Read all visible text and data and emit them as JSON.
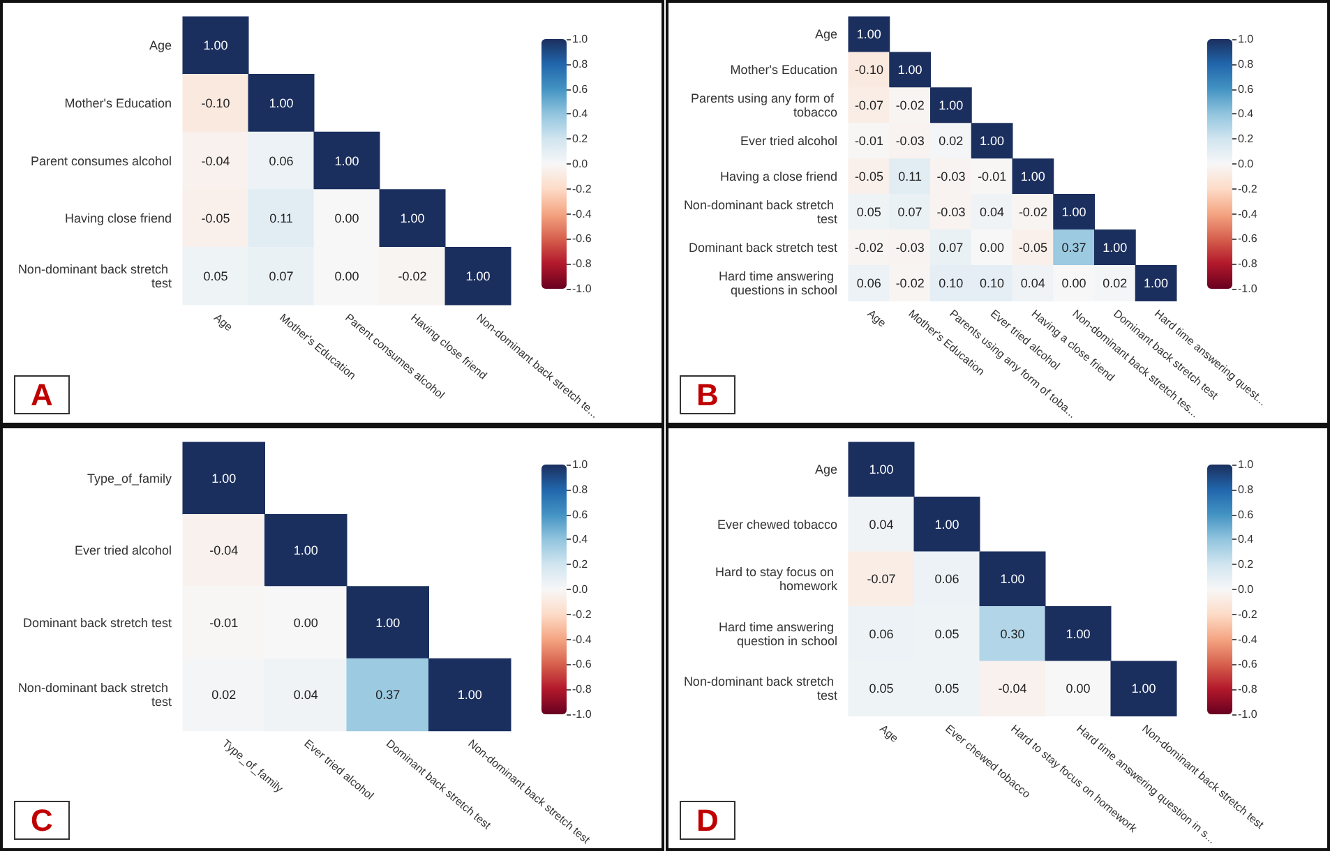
{
  "chart_data": [
    {
      "type": "heatmap",
      "title": "A",
      "categories": [
        "Age",
        "Mother's Education",
        "Parent consumes alcohol",
        "Having close friend",
        "Non-dominant back stretch te..."
      ],
      "y_categories": [
        "Age",
        "Mother's Education",
        "Parent consumes alcohol",
        "Having close friend",
        "Non-dominant back stretch test"
      ],
      "cells": [
        [
          1.0,
          null,
          null,
          null,
          null
        ],
        [
          -0.1,
          1.0,
          null,
          null,
          null
        ],
        [
          -0.04,
          0.06,
          1.0,
          null,
          null
        ],
        [
          -0.05,
          0.11,
          0.0,
          1.0,
          null
        ],
        [
          0.05,
          0.07,
          0.0,
          -0.02,
          1.0
        ]
      ],
      "cell_labels": [
        [
          "1.00",
          null,
          null,
          null,
          null
        ],
        [
          "-0.10",
          "1.00",
          null,
          null,
          null
        ],
        [
          "-0.04",
          "0.06",
          "1.00",
          null,
          null
        ],
        [
          "-0.05",
          "0.11",
          "0.00",
          "1.00",
          null
        ],
        [
          "0.05",
          "0.07",
          "0.00",
          "-0.02",
          "1.00"
        ]
      ],
      "clim": [
        -1,
        1
      ],
      "cticks": [
        {
          "value": -1,
          "label": "-1.0"
        },
        {
          "value": -0.8,
          "label": "-0.8"
        },
        {
          "value": -0.6,
          "label": "-0.6"
        },
        {
          "value": -0.4,
          "label": "-0.4"
        },
        {
          "value": -0.2,
          "label": "-0.2"
        },
        {
          "value": 0,
          "label": "0.0"
        },
        {
          "value": 0.2,
          "label": "0.2"
        },
        {
          "value": 0.4,
          "label": "0.4"
        },
        {
          "value": 0.6,
          "label": "0.6"
        },
        {
          "value": 0.8,
          "label": "0.8"
        },
        {
          "value": 1,
          "label": "1.0"
        }
      ],
      "data_labels": true
    },
    {
      "type": "heatmap",
      "title": "B",
      "categories": [
        "Age",
        "Mother's Education",
        "Parents using any form of toba...",
        "Ever tried alcohol",
        "Having a close friend",
        "Non-dominant back stretch tes...",
        "Dominant back stretch test",
        "Hard time answering quest..."
      ],
      "y_categories": [
        "Age",
        "Mother's Education",
        "Parents using any form of tobacco",
        "Ever tried alcohol",
        "Having a close friend",
        "Non-dominant back stretch test",
        "Dominant back stretch test",
        "Hard time answering questions in school"
      ],
      "cells": [
        [
          1.0,
          null,
          null,
          null,
          null,
          null,
          null,
          null
        ],
        [
          -0.1,
          1.0,
          null,
          null,
          null,
          null,
          null,
          null
        ],
        [
          -0.07,
          -0.02,
          1.0,
          null,
          null,
          null,
          null,
          null
        ],
        [
          -0.01,
          -0.03,
          0.02,
          1.0,
          null,
          null,
          null,
          null
        ],
        [
          -0.05,
          0.11,
          -0.03,
          -0.01,
          1.0,
          null,
          null,
          null
        ],
        [
          0.05,
          0.07,
          -0.03,
          0.04,
          -0.02,
          1.0,
          null,
          null
        ],
        [
          -0.02,
          -0.03,
          0.07,
          0.0,
          -0.05,
          0.37,
          1.0,
          null
        ],
        [
          0.06,
          -0.02,
          0.1,
          0.1,
          0.04,
          0.0,
          0.02,
          1.0
        ]
      ],
      "cell_labels": [
        [
          "1.00",
          null,
          null,
          null,
          null,
          null,
          null,
          null
        ],
        [
          "-0.10",
          "1.00",
          null,
          null,
          null,
          null,
          null,
          null
        ],
        [
          "-0.07",
          "-0.02",
          "1.00",
          null,
          null,
          null,
          null,
          null
        ],
        [
          "-0.01",
          "-0.03",
          "0.02",
          "1.00",
          null,
          null,
          null,
          null
        ],
        [
          "-0.05",
          "0.11",
          "-0.03",
          "-0.01",
          "1.00",
          null,
          null,
          null
        ],
        [
          "0.05",
          "0.07",
          "-0.03",
          "0.04",
          "-0.02",
          "1.00",
          null,
          null
        ],
        [
          "-0.02",
          "-0.03",
          "0.07",
          "0.00",
          "-0.05",
          "0.37",
          "1.00",
          null
        ],
        [
          "0.06",
          "-0.02",
          "0.10",
          "0.10",
          "0.04",
          "0.00",
          "0.02",
          "1.00"
        ]
      ],
      "clim": [
        -1,
        1
      ],
      "cticks": [
        {
          "value": -1,
          "label": "-1.0"
        },
        {
          "value": -0.8,
          "label": "-0.8"
        },
        {
          "value": -0.6,
          "label": "-0.6"
        },
        {
          "value": -0.4,
          "label": "-0.4"
        },
        {
          "value": -0.2,
          "label": "-0.2"
        },
        {
          "value": 0,
          "label": "0.0"
        },
        {
          "value": 0.2,
          "label": "0.2"
        },
        {
          "value": 0.4,
          "label": "0.4"
        },
        {
          "value": 0.6,
          "label": "0.6"
        },
        {
          "value": 0.8,
          "label": "0.8"
        },
        {
          "value": 1,
          "label": "1.0"
        }
      ],
      "data_labels": true
    },
    {
      "type": "heatmap",
      "title": "C",
      "categories": [
        "Type_of_family",
        "Ever tried alcohol",
        "Dominant back stretch test",
        "Non-dominant back stretch test"
      ],
      "y_categories": [
        "Type_of_family",
        "Ever tried alcohol",
        "Dominant back stretch test",
        "Non-dominant back stretch test"
      ],
      "cells": [
        [
          1.0,
          null,
          null,
          null
        ],
        [
          -0.04,
          1.0,
          null,
          null
        ],
        [
          -0.01,
          0.0,
          1.0,
          null
        ],
        [
          0.02,
          0.04,
          0.37,
          1.0
        ]
      ],
      "cell_labels": [
        [
          "1.00",
          null,
          null,
          null
        ],
        [
          "-0.04",
          "1.00",
          null,
          null
        ],
        [
          "-0.01",
          "0.00",
          "1.00",
          null
        ],
        [
          "0.02",
          "0.04",
          "0.37",
          "1.00"
        ]
      ],
      "clim": [
        -1,
        1
      ],
      "cticks": [
        {
          "value": -1,
          "label": "-1.0"
        },
        {
          "value": -0.8,
          "label": "-0.8"
        },
        {
          "value": -0.6,
          "label": "-0.6"
        },
        {
          "value": -0.4,
          "label": "-0.4"
        },
        {
          "value": -0.2,
          "label": "-0.2"
        },
        {
          "value": 0,
          "label": "0.0"
        },
        {
          "value": 0.2,
          "label": "0.2"
        },
        {
          "value": 0.4,
          "label": "0.4"
        },
        {
          "value": 0.6,
          "label": "0.6"
        },
        {
          "value": 0.8,
          "label": "0.8"
        },
        {
          "value": 1,
          "label": "1.0"
        }
      ],
      "data_labels": true
    },
    {
      "type": "heatmap",
      "title": "D",
      "categories": [
        "Age",
        "Ever chewed tobacco",
        "Hard to stay focus on homework",
        "Hard time answering question in s...",
        "Non-dominant back stretch test"
      ],
      "y_categories": [
        "Age",
        "Ever chewed tobacco",
        "Hard to stay focus on homework",
        "Hard time answering question in school",
        "Non-dominant back stretch test"
      ],
      "cells": [
        [
          1.0,
          null,
          null,
          null,
          null
        ],
        [
          0.04,
          1.0,
          null,
          null,
          null
        ],
        [
          -0.07,
          0.06,
          1.0,
          null,
          null
        ],
        [
          0.06,
          0.05,
          0.3,
          1.0,
          null
        ],
        [
          0.05,
          0.05,
          -0.04,
          0.0,
          1.0
        ]
      ],
      "cell_labels": [
        [
          "1.00",
          null,
          null,
          null,
          null
        ],
        [
          "0.04",
          "1.00",
          null,
          null,
          null
        ],
        [
          "-0.07",
          "0.06",
          "1.00",
          null,
          null
        ],
        [
          "0.06",
          "0.05",
          "0.30",
          "1.00",
          null
        ],
        [
          "0.05",
          "0.05",
          "-0.04",
          "0.00",
          "1.00"
        ]
      ],
      "clim": [
        -1,
        1
      ],
      "cticks": [
        {
          "value": -1,
          "label": "-1.0"
        },
        {
          "value": -0.8,
          "label": "-0.8"
        },
        {
          "value": -0.6,
          "label": "-0.6"
        },
        {
          "value": -0.4,
          "label": "-0.4"
        },
        {
          "value": -0.2,
          "label": "-0.2"
        },
        {
          "value": 0,
          "label": "0.0"
        },
        {
          "value": 0.2,
          "label": "0.2"
        },
        {
          "value": 0.4,
          "label": "0.4"
        },
        {
          "value": 0.6,
          "label": "0.6"
        },
        {
          "value": 0.8,
          "label": "0.8"
        },
        {
          "value": 1,
          "label": "1.0"
        }
      ],
      "data_labels": true
    }
  ]
}
